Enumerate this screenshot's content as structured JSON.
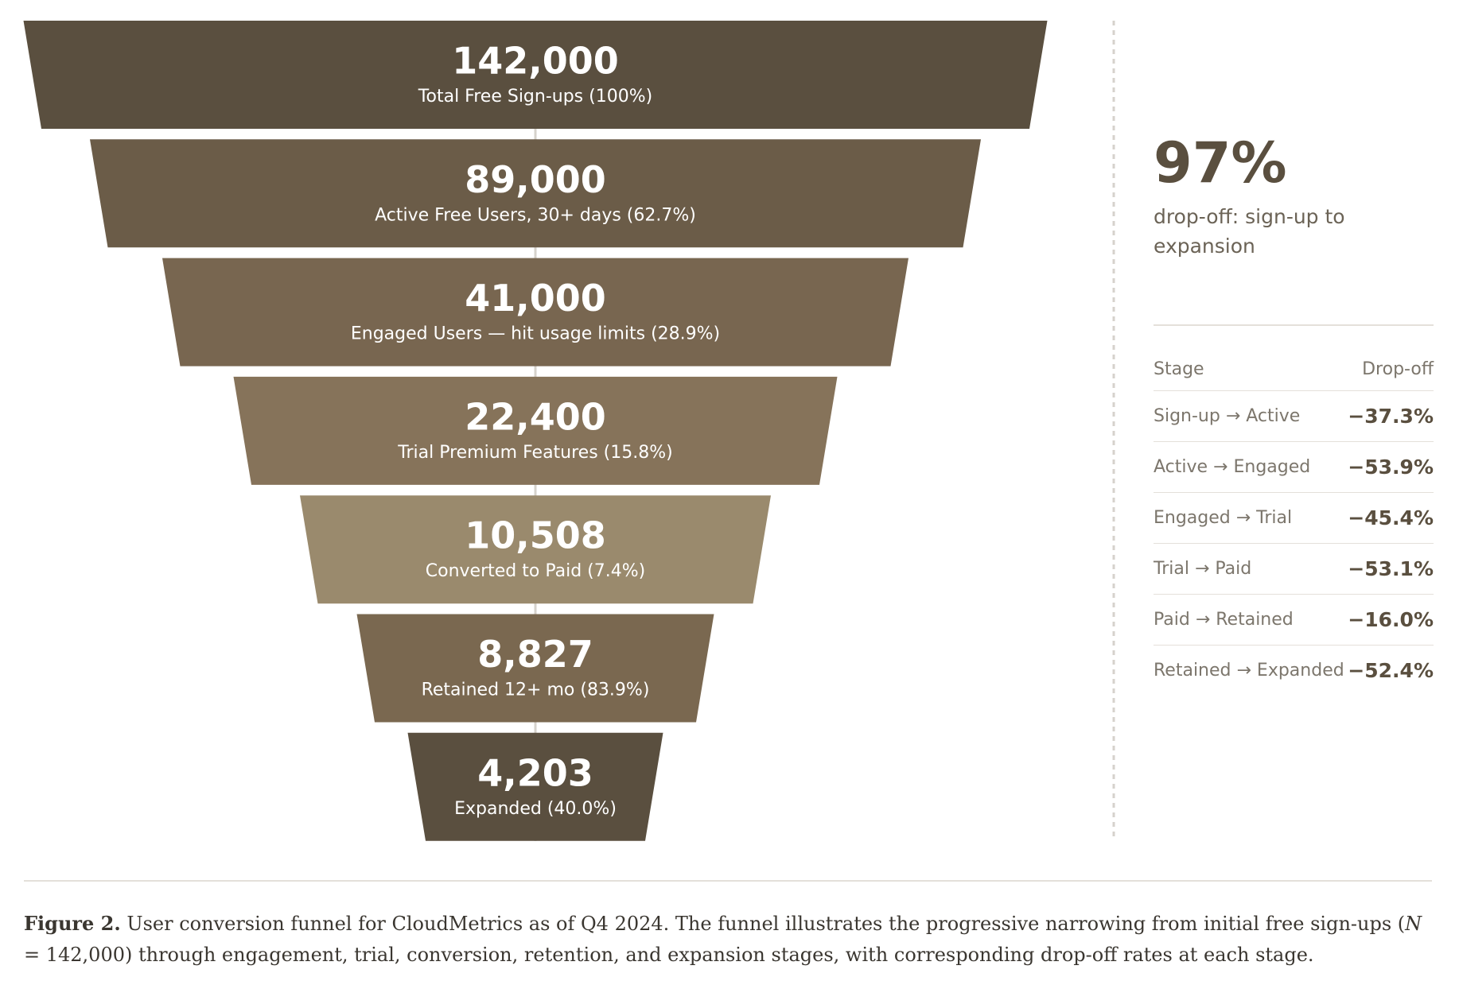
{
  "chart_data": {
    "type": "funnel",
    "categories": [
      "Total Free Sign-ups (100%)",
      "Active Free Users, 30+ days (62.7%)",
      "Engaged Users — hit usage limits (28.9%)",
      "Trial Premium Features (15.8%)",
      "Converted to Paid (7.4%)",
      "Retained 12+ mo (83.9%)",
      "Expanded (40.0%)"
    ],
    "values": [
      142000,
      89000,
      41000,
      22400,
      10508,
      8827,
      4203
    ],
    "value_labels": [
      "142,000",
      "89,000",
      "41,000",
      "22,400",
      "10,508",
      "8,827",
      "4,203"
    ],
    "colors": [
      "#5a4f3f",
      "#6b5c48",
      "#786650",
      "#86735a",
      "#9a8a6d",
      "#7a6850",
      "#5a4f3f"
    ]
  },
  "summary": {
    "stat": "97%",
    "text": "drop-off: sign-up to expansion"
  },
  "table": {
    "header": [
      "Stage",
      "Drop-off"
    ],
    "rows": [
      [
        "Sign-up → Active",
        "−37.3%"
      ],
      [
        "Active → Engaged",
        "−53.9%"
      ],
      [
        "Engaged → Trial",
        "−45.4%"
      ],
      [
        "Trial → Paid",
        "−53.1%"
      ],
      [
        "Paid → Retained",
        "−16.0%"
      ],
      [
        "Retained → Expanded",
        "−52.4%"
      ]
    ]
  },
  "caption": {
    "label": "Figure 2.",
    "text_before": "User conversion funnel for CloudMetrics as of Q4 2024. The funnel illustrates the progressive narrowing from initial free sign-ups (",
    "variable": "N",
    "text_after": " = 142,000) through engagement, trial, conversion, retention, and expansion stages, with corresponding drop-off rates at each stage."
  }
}
